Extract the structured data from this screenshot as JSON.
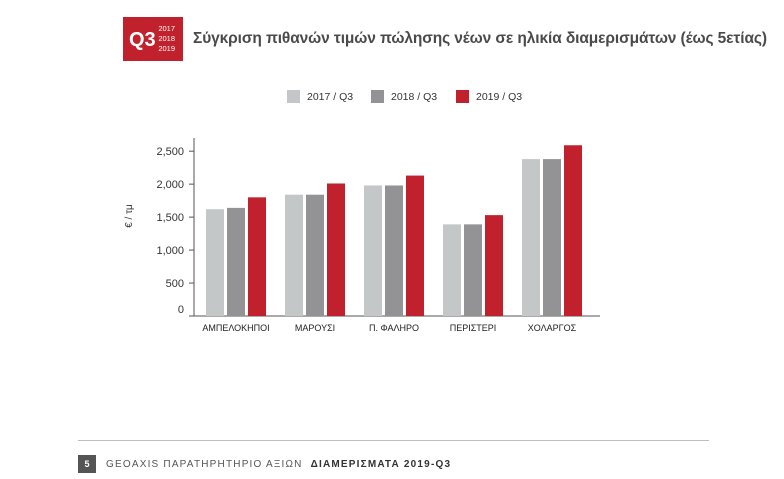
{
  "header": {
    "badge_quarter": "Q3",
    "badge_years": [
      "2017",
      "2018",
      "2019"
    ],
    "title": "Σύγκριση πιθανών τιμών πώλησης νέων σε ηλικία διαμερισμάτων (έως 5ετίας)"
  },
  "footer": {
    "page_number": "5",
    "source_text": "GEOAXIS ΠΑΡΑΤΗΡΗΤΗΡΙΟ ΑΞΙΩΝ",
    "report_title": "ΔΙΑΜΕΡΙΣΜΑΤΑ  2019-Q3"
  },
  "chart_data": {
    "type": "bar",
    "title": "Σύγκριση πιθανών τιμών πώλησης νέων σε ηλικία διαμερισμάτων (έως 5ετίας)",
    "xlabel": "",
    "ylabel": "€ / τμ",
    "ylim": [
      0,
      2700
    ],
    "yticks": [
      0,
      500,
      1000,
      1500,
      2000,
      2500
    ],
    "ytick_labels": [
      "0",
      "500",
      "1,000",
      "1,500",
      "2,000",
      "2,500"
    ],
    "grid": false,
    "legend_position": "top-center",
    "categories": [
      "ΑΜΠΕΛΟΚΗΠΟΙ",
      "ΜΑΡΟΥΣΙ",
      "Π. ΦΑΛΗΡΟ",
      "ΠΕΡΙΣΤΕΡΙ",
      "ΧΟΛΑΡΓΟΣ"
    ],
    "series": [
      {
        "name": "2017 / Q3",
        "color": "#c3c7c7",
        "values": [
          1620,
          1840,
          1980,
          1390,
          2380
        ]
      },
      {
        "name": "2018 / Q3",
        "color": "#939395",
        "values": [
          1640,
          1840,
          1980,
          1390,
          2380
        ]
      },
      {
        "name": "2019 / Q3",
        "color": "#c0212d",
        "values": [
          1800,
          2010,
          2130,
          1530,
          2590
        ]
      }
    ]
  }
}
